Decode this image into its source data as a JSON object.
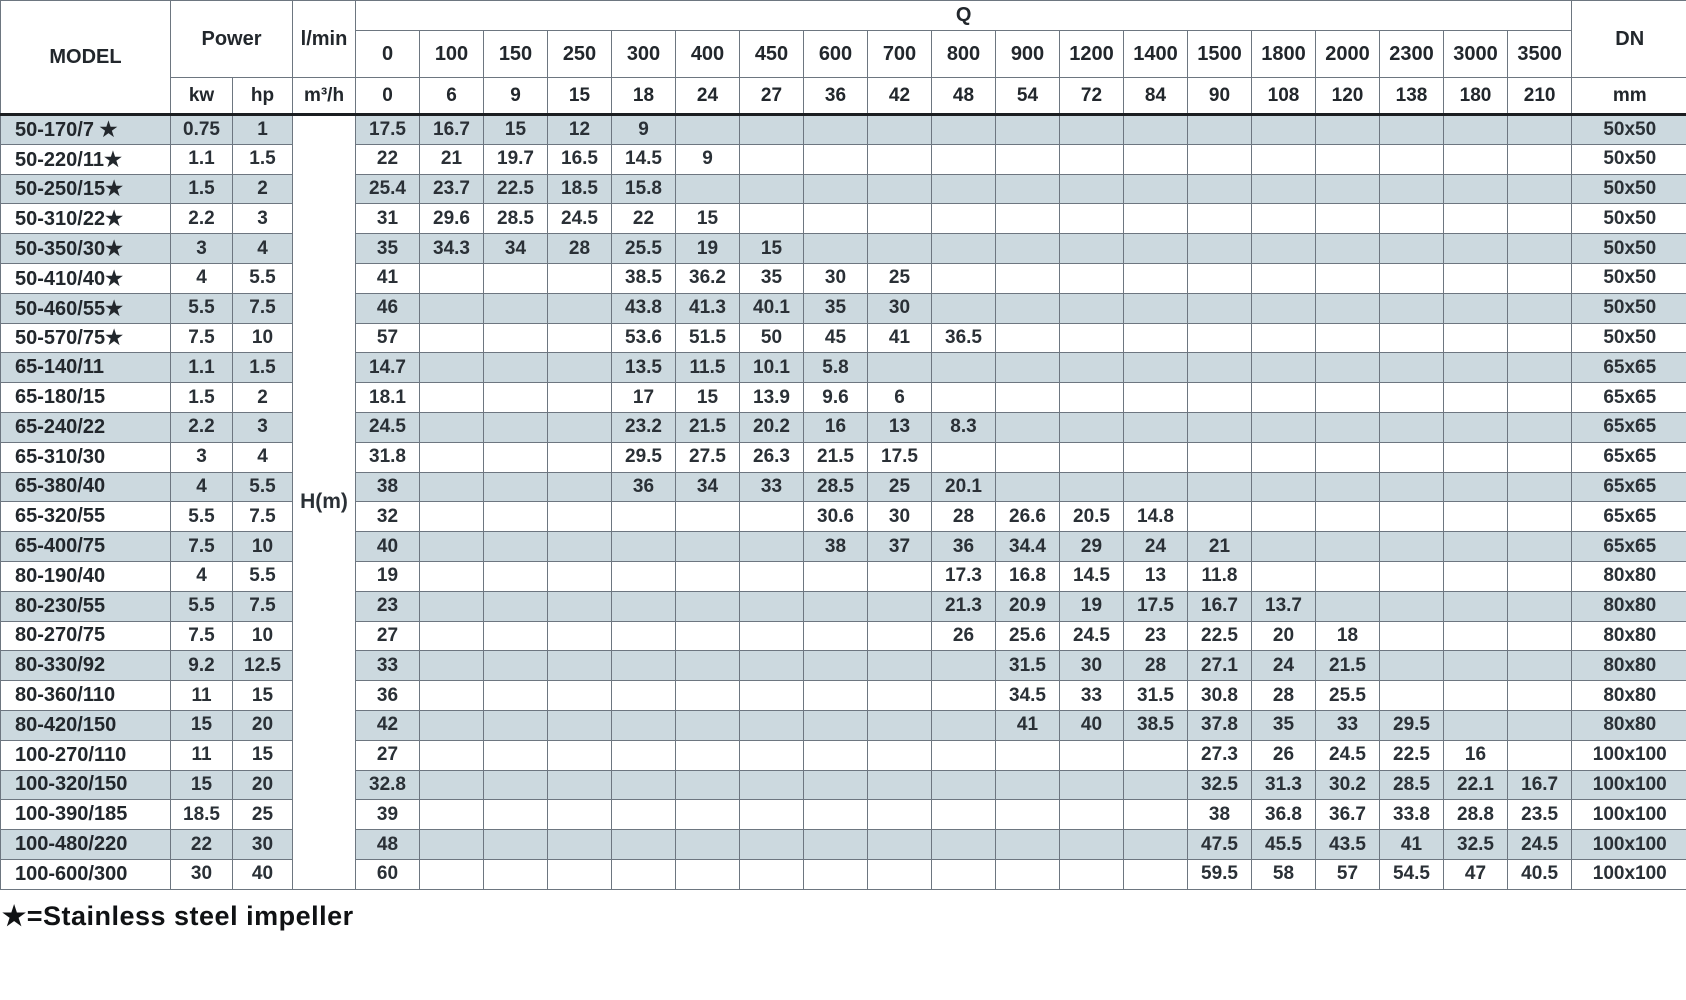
{
  "header": {
    "model_label": "MODEL",
    "power_label": "Power",
    "kw_label": "kw",
    "hp_label": "hp",
    "flow_lmin_label": "l/min",
    "flow_m3h_label": "m³/h",
    "q_label": "Q",
    "dn_label": "DN",
    "dn_unit": "mm",
    "head_label": "H(m)",
    "q_lmin": [
      "0",
      "100",
      "150",
      "250",
      "300",
      "400",
      "450",
      "600",
      "700",
      "800",
      "900",
      "1200",
      "1400",
      "1500",
      "1800",
      "2000",
      "2300",
      "3000",
      "3500"
    ],
    "q_m3h": [
      "0",
      "6",
      "9",
      "15",
      "18",
      "24",
      "27",
      "36",
      "42",
      "48",
      "54",
      "72",
      "84",
      "90",
      "108",
      "120",
      "138",
      "180",
      "210"
    ]
  },
  "rows": [
    {
      "model": "50-170/7 ★",
      "kw": "0.75",
      "hp": "1",
      "h": [
        "17.5",
        "16.7",
        "15",
        "12",
        "9",
        "",
        "",
        "",
        "",
        "",
        "",
        "",
        "",
        "",
        "",
        "",
        "",
        "",
        ""
      ],
      "dn": "50x50"
    },
    {
      "model": "50-220/11★",
      "kw": "1.1",
      "hp": "1.5",
      "h": [
        "22",
        "21",
        "19.7",
        "16.5",
        "14.5",
        "9",
        "",
        "",
        "",
        "",
        "",
        "",
        "",
        "",
        "",
        "",
        "",
        "",
        ""
      ],
      "dn": "50x50"
    },
    {
      "model": "50-250/15★",
      "kw": "1.5",
      "hp": "2",
      "h": [
        "25.4",
        "23.7",
        "22.5",
        "18.5",
        "15.8",
        "",
        "",
        "",
        "",
        "",
        "",
        "",
        "",
        "",
        "",
        "",
        "",
        "",
        ""
      ],
      "dn": "50x50"
    },
    {
      "model": "50-310/22★",
      "kw": "2.2",
      "hp": "3",
      "h": [
        "31",
        "29.6",
        "28.5",
        "24.5",
        "22",
        "15",
        "",
        "",
        "",
        "",
        "",
        "",
        "",
        "",
        "",
        "",
        "",
        "",
        ""
      ],
      "dn": "50x50"
    },
    {
      "model": "50-350/30★",
      "kw": "3",
      "hp": "4",
      "h": [
        "35",
        "34.3",
        "34",
        "28",
        "25.5",
        "19",
        "15",
        "",
        "",
        "",
        "",
        "",
        "",
        "",
        "",
        "",
        "",
        "",
        ""
      ],
      "dn": "50x50"
    },
    {
      "model": "50-410/40★",
      "kw": "4",
      "hp": "5.5",
      "h": [
        "41",
        "",
        "",
        "",
        "38.5",
        "36.2",
        "35",
        "30",
        "25",
        "",
        "",
        "",
        "",
        "",
        "",
        "",
        "",
        "",
        ""
      ],
      "dn": "50x50"
    },
    {
      "model": "50-460/55★",
      "kw": "5.5",
      "hp": "7.5",
      "h": [
        "46",
        "",
        "",
        "",
        "43.8",
        "41.3",
        "40.1",
        "35",
        "30",
        "",
        "",
        "",
        "",
        "",
        "",
        "",
        "",
        "",
        ""
      ],
      "dn": "50x50"
    },
    {
      "model": "50-570/75★",
      "kw": "7.5",
      "hp": "10",
      "h": [
        "57",
        "",
        "",
        "",
        "53.6",
        "51.5",
        "50",
        "45",
        "41",
        "36.5",
        "",
        "",
        "",
        "",
        "",
        "",
        "",
        "",
        ""
      ],
      "dn": "50x50"
    },
    {
      "model": "65-140/11",
      "kw": "1.1",
      "hp": "1.5",
      "h": [
        "14.7",
        "",
        "",
        "",
        "13.5",
        "11.5",
        "10.1",
        "5.8",
        "",
        "",
        "",
        "",
        "",
        "",
        "",
        "",
        "",
        "",
        ""
      ],
      "dn": "65x65"
    },
    {
      "model": "65-180/15",
      "kw": "1.5",
      "hp": "2",
      "h": [
        "18.1",
        "",
        "",
        "",
        "17",
        "15",
        "13.9",
        "9.6",
        "6",
        "",
        "",
        "",
        "",
        "",
        "",
        "",
        "",
        "",
        ""
      ],
      "dn": "65x65"
    },
    {
      "model": "65-240/22",
      "kw": "2.2",
      "hp": "3",
      "h": [
        "24.5",
        "",
        "",
        "",
        "23.2",
        "21.5",
        "20.2",
        "16",
        "13",
        "8.3",
        "",
        "",
        "",
        "",
        "",
        "",
        "",
        "",
        ""
      ],
      "dn": "65x65"
    },
    {
      "model": "65-310/30",
      "kw": "3",
      "hp": "4",
      "h": [
        "31.8",
        "",
        "",
        "",
        "29.5",
        "27.5",
        "26.3",
        "21.5",
        "17.5",
        "",
        "",
        "",
        "",
        "",
        "",
        "",
        "",
        "",
        ""
      ],
      "dn": "65x65"
    },
    {
      "model": "65-380/40",
      "kw": "4",
      "hp": "5.5",
      "h": [
        "38",
        "",
        "",
        "",
        "36",
        "34",
        "33",
        "28.5",
        "25",
        "20.1",
        "",
        "",
        "",
        "",
        "",
        "",
        "",
        "",
        ""
      ],
      "dn": "65x65"
    },
    {
      "model": "65-320/55",
      "kw": "5.5",
      "hp": "7.5",
      "h": [
        "32",
        "",
        "",
        "",
        "",
        "",
        "",
        "30.6",
        "30",
        "28",
        "26.6",
        "20.5",
        "14.8",
        "",
        "",
        "",
        "",
        "",
        ""
      ],
      "dn": "65x65"
    },
    {
      "model": "65-400/75",
      "kw": "7.5",
      "hp": "10",
      "h": [
        "40",
        "",
        "",
        "",
        "",
        "",
        "",
        "38",
        "37",
        "36",
        "34.4",
        "29",
        "24",
        "21",
        "",
        "",
        "",
        "",
        ""
      ],
      "dn": "65x65"
    },
    {
      "model": "80-190/40",
      "kw": "4",
      "hp": "5.5",
      "h": [
        "19",
        "",
        "",
        "",
        "",
        "",
        "",
        "",
        "",
        "17.3",
        "16.8",
        "14.5",
        "13",
        "11.8",
        "",
        "",
        "",
        "",
        ""
      ],
      "dn": "80x80"
    },
    {
      "model": "80-230/55",
      "kw": "5.5",
      "hp": "7.5",
      "h": [
        "23",
        "",
        "",
        "",
        "",
        "",
        "",
        "",
        "",
        "21.3",
        "20.9",
        "19",
        "17.5",
        "16.7",
        "13.7",
        "",
        "",
        "",
        ""
      ],
      "dn": "80x80"
    },
    {
      "model": "80-270/75",
      "kw": "7.5",
      "hp": "10",
      "h": [
        "27",
        "",
        "",
        "",
        "",
        "",
        "",
        "",
        "",
        "26",
        "25.6",
        "24.5",
        "23",
        "22.5",
        "20",
        "18",
        "",
        "",
        ""
      ],
      "dn": "80x80"
    },
    {
      "model": "80-330/92",
      "kw": "9.2",
      "hp": "12.5",
      "h": [
        "33",
        "",
        "",
        "",
        "",
        "",
        "",
        "",
        "",
        "",
        "31.5",
        "30",
        "28",
        "27.1",
        "24",
        "21.5",
        "",
        "",
        ""
      ],
      "dn": "80x80"
    },
    {
      "model": "80-360/110",
      "kw": "11",
      "hp": "15",
      "h": [
        "36",
        "",
        "",
        "",
        "",
        "",
        "",
        "",
        "",
        "",
        "34.5",
        "33",
        "31.5",
        "30.8",
        "28",
        "25.5",
        "",
        "",
        ""
      ],
      "dn": "80x80"
    },
    {
      "model": "80-420/150",
      "kw": "15",
      "hp": "20",
      "h": [
        "42",
        "",
        "",
        "",
        "",
        "",
        "",
        "",
        "",
        "",
        "41",
        "40",
        "38.5",
        "37.8",
        "35",
        "33",
        "29.5",
        "",
        ""
      ],
      "dn": "80x80"
    },
    {
      "model": "100-270/110",
      "kw": "11",
      "hp": "15",
      "h": [
        "27",
        "",
        "",
        "",
        "",
        "",
        "",
        "",
        "",
        "",
        "",
        "",
        "",
        "27.3",
        "26",
        "24.5",
        "22.5",
        "16",
        ""
      ],
      "dn": "100x100"
    },
    {
      "model": "100-320/150",
      "kw": "15",
      "hp": "20",
      "h": [
        "32.8",
        "",
        "",
        "",
        "",
        "",
        "",
        "",
        "",
        "",
        "",
        "",
        "",
        "32.5",
        "31.3",
        "30.2",
        "28.5",
        "22.1",
        "16.7"
      ],
      "dn": "100x100"
    },
    {
      "model": "100-390/185",
      "kw": "18.5",
      "hp": "25",
      "h": [
        "39",
        "",
        "",
        "",
        "",
        "",
        "",
        "",
        "",
        "",
        "",
        "",
        "",
        "38",
        "36.8",
        "36.7",
        "33.8",
        "28.8",
        "23.5"
      ],
      "dn": "100x100"
    },
    {
      "model": "100-480/220",
      "kw": "22",
      "hp": "30",
      "h": [
        "48",
        "",
        "",
        "",
        "",
        "",
        "",
        "",
        "",
        "",
        "",
        "",
        "",
        "47.5",
        "45.5",
        "43.5",
        "41",
        "32.5",
        "24.5"
      ],
      "dn": "100x100"
    },
    {
      "model": "100-600/300",
      "kw": "30",
      "hp": "40",
      "h": [
        "60",
        "",
        "",
        "",
        "",
        "",
        "",
        "",
        "",
        "",
        "",
        "",
        "",
        "59.5",
        "58",
        "57",
        "54.5",
        "47",
        "40.5"
      ],
      "dn": "100x100"
    }
  ],
  "footnote": "★=Stainless steel impeller",
  "colors": {
    "row_shade": "#ccd9df",
    "grid_line": "#6d7680",
    "header_divider": "#1b1e21"
  }
}
